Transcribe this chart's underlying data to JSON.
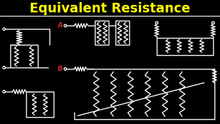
{
  "title": "Equivalent Resistance",
  "title_color": "#FFFF00",
  "bg_color": "#000000",
  "line_color": "#FFFFFF",
  "label_A_color": "#CC2222",
  "label_B_color": "#CC2222",
  "figsize": [
    3.2,
    1.8
  ],
  "dpi": 100
}
